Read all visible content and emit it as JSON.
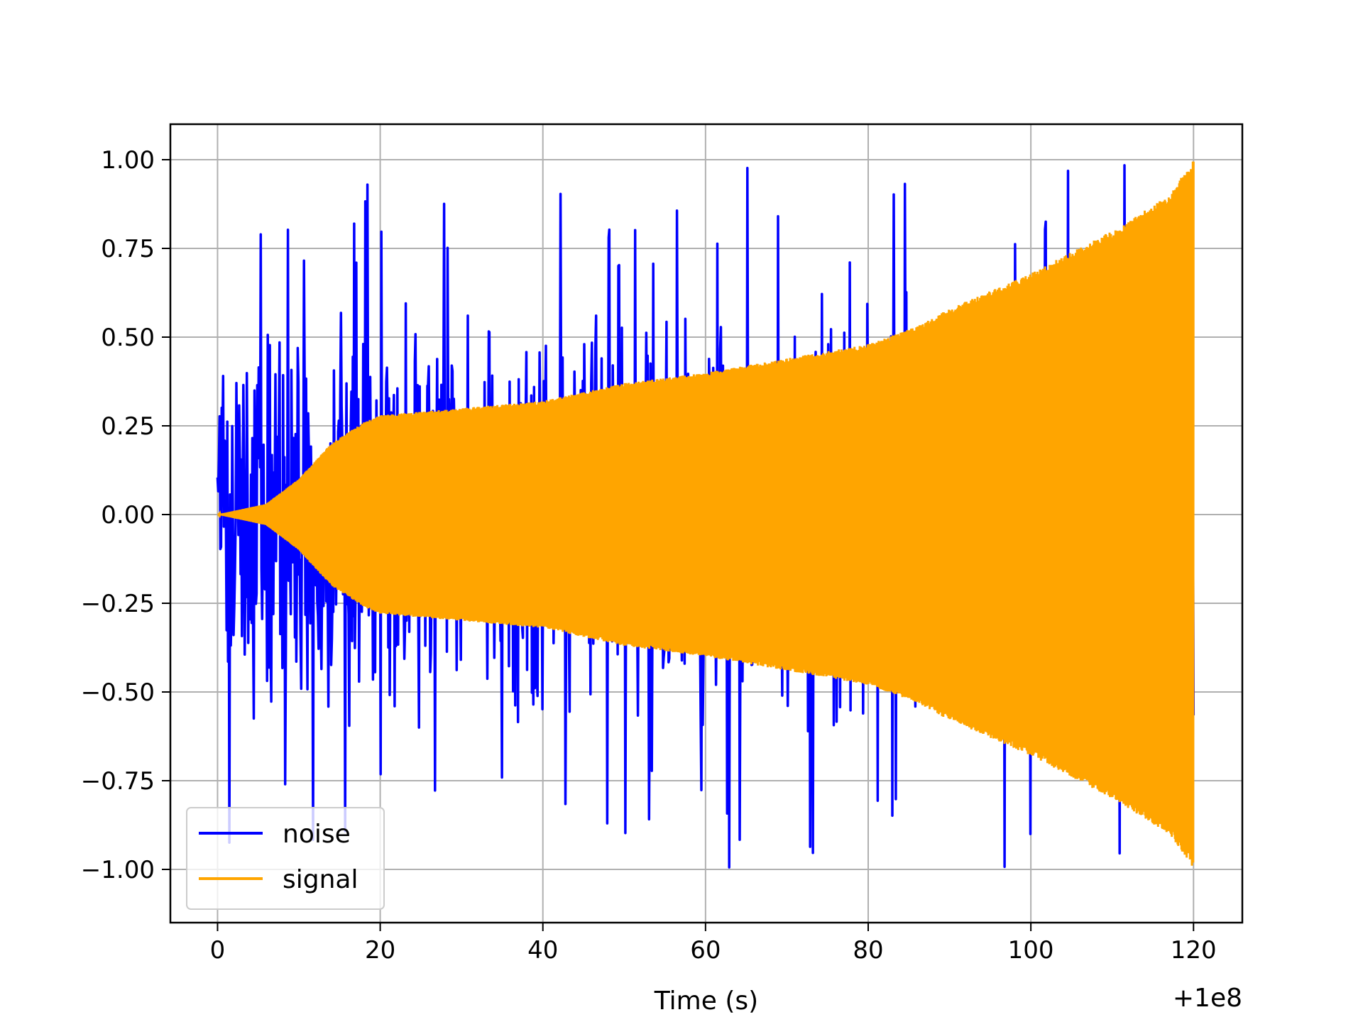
{
  "chart_data": {
    "type": "line",
    "title": "",
    "xlabel": "Time (s)",
    "ylabel": "",
    "x_offset_label": "+1e8",
    "xlim": [
      -5.8,
      126
    ],
    "ylim": [
      -1.15,
      1.1
    ],
    "x_ticks": [
      0,
      20,
      40,
      60,
      80,
      100,
      120
    ],
    "x_tick_labels": [
      "0",
      "20",
      "40",
      "60",
      "80",
      "100",
      "120"
    ],
    "y_ticks": [
      1.0,
      0.75,
      0.5,
      0.25,
      0.0,
      -0.25,
      -0.5,
      -0.75,
      -1.0
    ],
    "y_tick_labels": [
      "1.00",
      "0.75",
      "0.50",
      "0.25",
      "0.00",
      "−0.25",
      "−0.50",
      "−0.75",
      "−1.00"
    ],
    "grid": true,
    "legend_position": "lower-left",
    "series": [
      {
        "name": "noise",
        "color": "#0000ff",
        "x_range": [
          0,
          120
        ],
        "min_value": -1.04,
        "max_value": 1.0,
        "typical_amplitude": 0.55
      },
      {
        "name": "signal",
        "color": "#ffa500",
        "x_range": [
          0,
          120
        ],
        "min_value": -1.0,
        "max_value": 1.0,
        "envelope": [
          {
            "x": 0,
            "amp": 0.0
          },
          {
            "x": 2,
            "amp": 0.01
          },
          {
            "x": 6,
            "amp": 0.03
          },
          {
            "x": 10,
            "amp": 0.1
          },
          {
            "x": 14,
            "amp": 0.2
          },
          {
            "x": 18,
            "amp": 0.26
          },
          {
            "x": 20,
            "amp": 0.28
          },
          {
            "x": 30,
            "amp": 0.3
          },
          {
            "x": 40,
            "amp": 0.32
          },
          {
            "x": 50,
            "amp": 0.37
          },
          {
            "x": 60,
            "amp": 0.4
          },
          {
            "x": 70,
            "amp": 0.44
          },
          {
            "x": 80,
            "amp": 0.48
          },
          {
            "x": 86,
            "amp": 0.53
          },
          {
            "x": 90,
            "amp": 0.58
          },
          {
            "x": 100,
            "amp": 0.68
          },
          {
            "x": 110,
            "amp": 0.8
          },
          {
            "x": 117,
            "amp": 0.9
          },
          {
            "x": 120,
            "amp": 1.0
          }
        ]
      }
    ]
  }
}
